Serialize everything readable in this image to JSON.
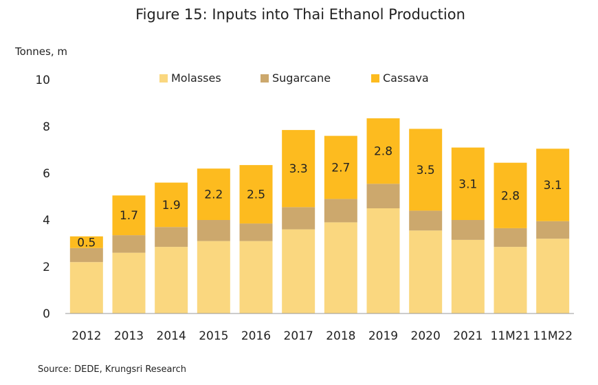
{
  "title": "Figure 15: Inputs into Thai Ethanol Production",
  "source": "Source: DEDE, Krungsri Research",
  "chart_data": {
    "type": "bar",
    "stacked": true,
    "ylabel": "Tonnes, m",
    "ylim": [
      0,
      10
    ],
    "yticks": [
      0,
      2,
      4,
      6,
      8,
      10
    ],
    "grid": false,
    "legend_position": "top",
    "categories": [
      "2012",
      "2013",
      "2014",
      "2015",
      "2016",
      "2017",
      "2018",
      "2019",
      "2020",
      "2021",
      "11M21",
      "11M22"
    ],
    "series": [
      {
        "name": "Molasses",
        "color": "#FAD77F",
        "values": [
          2.2,
          2.6,
          2.85,
          3.1,
          3.1,
          3.6,
          3.9,
          4.5,
          3.55,
          3.15,
          2.85,
          3.2
        ]
      },
      {
        "name": "Sugarcane",
        "color": "#CCA86D",
        "values": [
          0.6,
          0.75,
          0.85,
          0.9,
          0.75,
          0.95,
          1.0,
          1.05,
          0.85,
          0.85,
          0.8,
          0.75
        ]
      },
      {
        "name": "Cassava",
        "color": "#FDBB1F",
        "values": [
          0.5,
          1.7,
          1.9,
          2.2,
          2.5,
          3.3,
          2.7,
          2.8,
          3.5,
          3.1,
          2.8,
          3.1
        ],
        "labels": [
          "0.5",
          "1.7",
          "1.9",
          "2.2",
          "2.5",
          "3.3",
          "2.7",
          "2.8",
          "3.5",
          "3.1",
          "2.8",
          "3.1"
        ]
      }
    ]
  }
}
